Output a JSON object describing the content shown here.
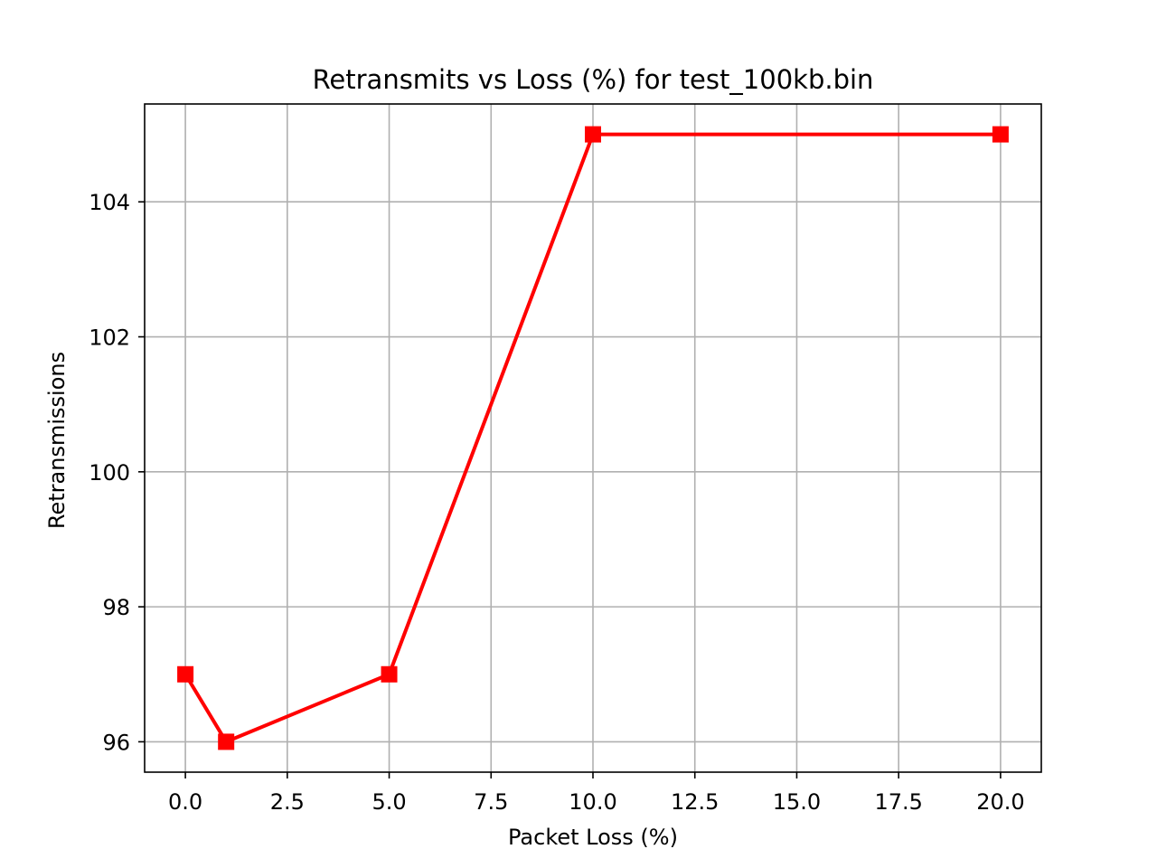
{
  "chart_data": {
    "type": "line",
    "title": "Retransmits vs Loss (%) for test_100kb.bin",
    "xlabel": "Packet Loss (%)",
    "ylabel": "Retransmissions",
    "x": [
      0,
      1,
      5,
      10,
      20
    ],
    "series": [
      {
        "values": [
          97,
          96,
          97,
          105,
          105
        ],
        "color": "#ff0000",
        "marker": "square"
      }
    ],
    "xlim": [
      -1,
      21
    ],
    "ylim": [
      95.55,
      105.45
    ],
    "xticks": [
      0.0,
      2.5,
      5.0,
      7.5,
      10.0,
      12.5,
      15.0,
      17.5,
      20.0
    ],
    "xtick_labels": [
      "0.0",
      "2.5",
      "5.0",
      "7.5",
      "10.0",
      "12.5",
      "15.0",
      "17.5",
      "20.0"
    ],
    "yticks": [
      96,
      98,
      100,
      102,
      104
    ],
    "ytick_labels": [
      "96",
      "98",
      "100",
      "102",
      "104"
    ],
    "grid": true,
    "grid_color": "#b0b0b0",
    "legend": "none"
  }
}
